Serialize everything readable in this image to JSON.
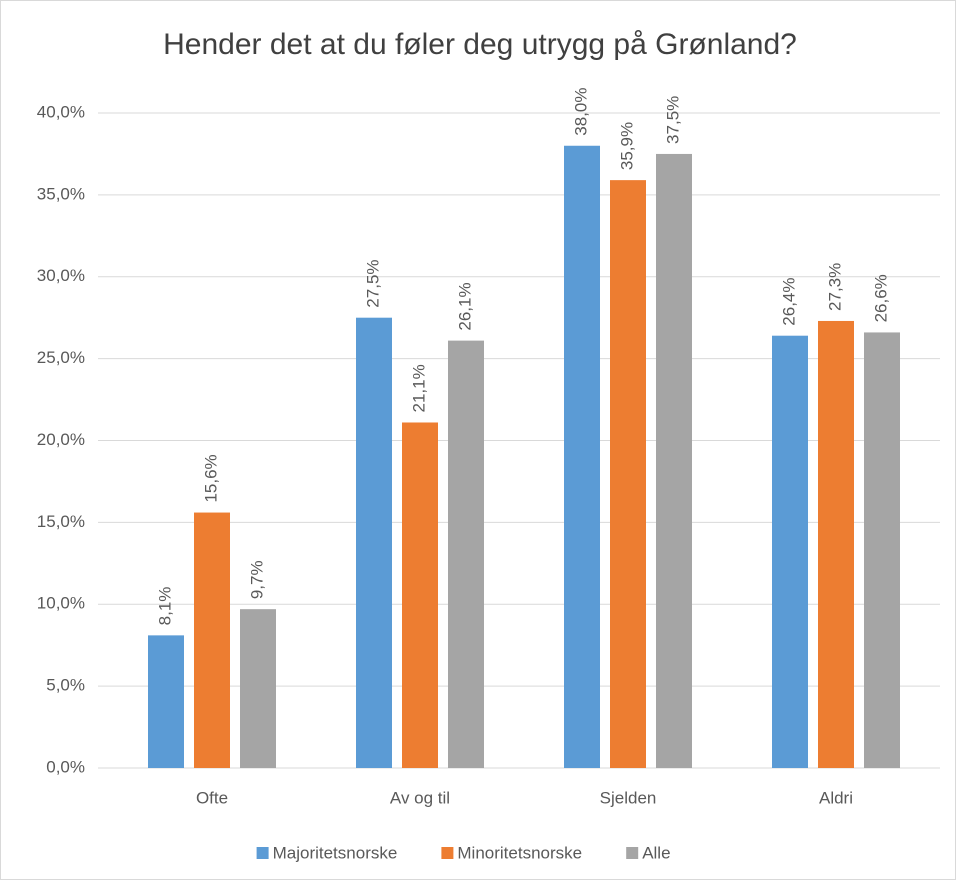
{
  "chart_data": {
    "type": "bar",
    "title": "Hender det at du føler deg utrygg på Grønland?",
    "categories": [
      "Ofte",
      "Av og til",
      "Sjelden",
      "Aldri"
    ],
    "series": [
      {
        "name": "Majoritetsnorske",
        "color": "#5b9bd5",
        "values": [
          8.1,
          27.5,
          38.0,
          26.4
        ],
        "value_labels": [
          "8,1%",
          "27,5%",
          "38,0%",
          "26,4%"
        ]
      },
      {
        "name": "Minoritetsnorske",
        "color": "#ed7d31",
        "values": [
          15.6,
          21.1,
          35.9,
          27.3
        ],
        "value_labels": [
          "15,6%",
          "21,1%",
          "35,9%",
          "27,3%"
        ]
      },
      {
        "name": "Alle",
        "color": "#a5a5a5",
        "values": [
          9.7,
          26.1,
          37.5,
          26.6
        ],
        "value_labels": [
          "9,7%",
          "26,1%",
          "37,5%",
          "26,6%"
        ]
      }
    ],
    "ylim": [
      0,
      40
    ],
    "yticks": [
      {
        "value": 0,
        "label": "0,0%"
      },
      {
        "value": 5,
        "label": "5,0%"
      },
      {
        "value": 10,
        "label": "10,0%"
      },
      {
        "value": 15,
        "label": "15,0%"
      },
      {
        "value": 20,
        "label": "20,0%"
      },
      {
        "value": 25,
        "label": "25,0%"
      },
      {
        "value": 30,
        "label": "30,0%"
      },
      {
        "value": 35,
        "label": "35,0%"
      },
      {
        "value": 40,
        "label": "40,0%"
      }
    ],
    "grid": true,
    "legend": "bottom"
  }
}
